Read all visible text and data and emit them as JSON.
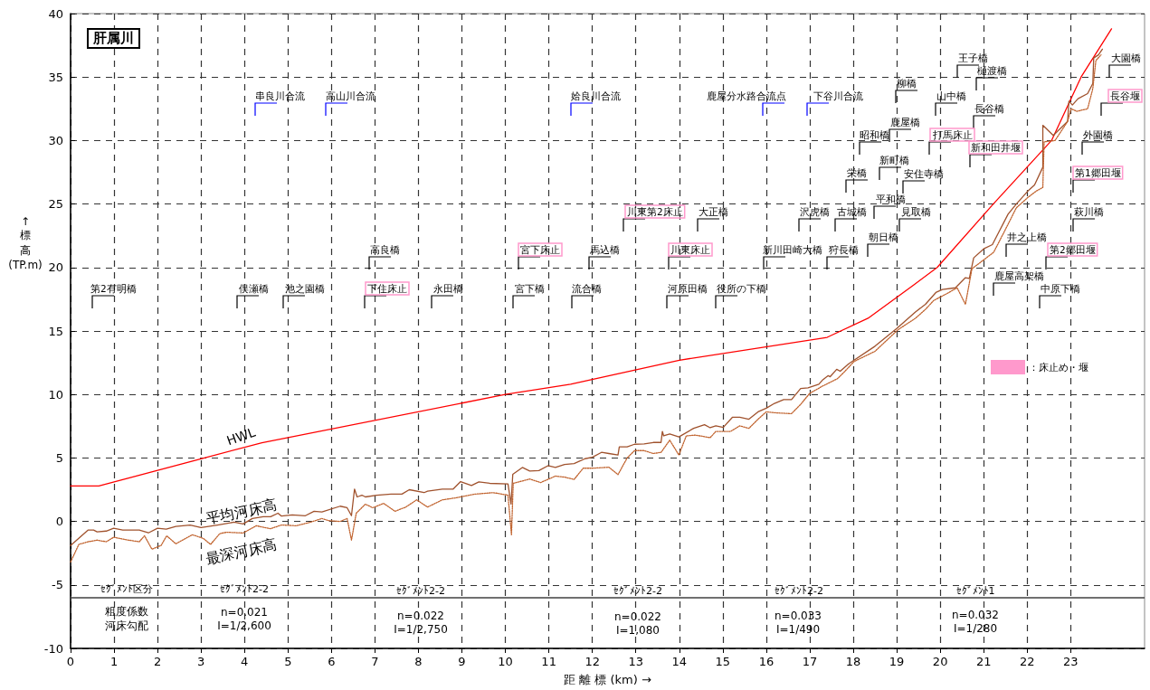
{
  "chart_data": {
    "type": "line",
    "title": "肝属川",
    "xlabel": "距 離 標 (km) →",
    "ylabel": "↑標高(TP.m)",
    "xlim": [
      0,
      24.7
    ],
    "xticks": [
      0,
      1,
      2,
      3,
      4,
      5,
      6,
      7,
      8,
      9,
      10,
      11,
      12,
      13,
      14,
      15,
      16,
      17,
      18,
      19,
      20,
      21,
      22,
      23
    ],
    "ylim": [
      -10,
      40
    ],
    "yticks": [
      -10,
      -5,
      0,
      5,
      10,
      15,
      20,
      25,
      30,
      35,
      40
    ],
    "grid": true,
    "legend": false,
    "marker": "none",
    "series": [
      {
        "name": "HWL",
        "color": "#ff0000",
        "line_style": "solid",
        "x": [
          0,
          0.65,
          4.4,
          10,
          11.5,
          14,
          17.4,
          18.34,
          19.38,
          19.93,
          21.22,
          22.56,
          23.24,
          23.94
        ],
        "values": [
          2.8,
          2.8,
          6.2,
          10,
          10.8,
          12.7,
          14.5,
          16,
          18.6,
          20,
          25,
          30,
          35,
          38.8
        ]
      },
      {
        "name": "平均河床高",
        "color": "#a0522d",
        "line_style": "solid",
        "x": [
          0,
          0.4,
          0.53,
          0.61,
          0.82,
          0.99,
          1.2,
          1.58,
          1.79,
          2.0,
          2.2,
          2.42,
          2.75,
          3.0,
          3.38,
          3.76,
          3.97,
          4.18,
          4.43,
          4.6,
          4.77,
          4.85,
          5.1,
          5.4,
          5.6,
          5.78,
          6.2,
          6.36,
          6.46,
          6.53,
          6.59,
          6.7,
          6.78,
          7.04,
          7.37,
          7.62,
          7.79,
          8.13,
          8.21,
          8.55,
          8.8,
          8.97,
          9.22,
          9.39,
          9.64,
          10.06,
          10.13,
          10.17,
          10.39,
          10.56,
          10.77,
          10.98,
          11.15,
          11.36,
          11.58,
          11.83,
          12,
          12.21,
          12.38,
          12.59,
          12.62,
          12.8,
          12.97,
          13.19,
          13.4,
          13.58,
          13.61,
          13.64,
          13.78,
          13.99,
          14.33,
          14.58,
          14.71,
          14.84,
          15.01,
          15.22,
          15.39,
          15.6,
          15.81,
          16,
          16.19,
          16.4,
          16.58,
          16.79,
          16.96,
          17.21,
          17.3,
          17.42,
          17.47,
          17.62,
          17.7,
          17.89,
          18.02,
          18.5,
          19.0,
          19.43,
          19.66,
          19.9,
          20.05,
          20.35,
          20.58,
          20.67,
          20.77,
          21.0,
          21.2,
          21.56,
          21.75,
          22.01,
          22.17,
          22.36,
          22.36,
          22.6,
          22.93,
          22.96,
          23.04,
          23.17,
          23.39,
          23.51,
          23.53,
          23.64,
          23.73
        ],
        "values": [
          -1.9,
          -0.68,
          -0.68,
          -0.82,
          -0.76,
          -0.54,
          -0.68,
          -0.68,
          -0.9,
          -0.54,
          -0.6,
          -0.4,
          -0.28,
          -0.48,
          -0.28,
          -0.06,
          -0.2,
          0.23,
          0.37,
          0.37,
          0.65,
          0.42,
          0.51,
          0.45,
          0.8,
          0.74,
          1.2,
          1.08,
          0.45,
          2.55,
          1.93,
          2.07,
          1.93,
          2.07,
          2.15,
          2.15,
          2.5,
          2.27,
          2.38,
          2.55,
          2.55,
          3.14,
          2.83,
          3.12,
          3.0,
          2.95,
          1.36,
          3.71,
          4.25,
          3.97,
          4.0,
          4.39,
          4.25,
          4.48,
          4.56,
          4.94,
          5.06,
          5.44,
          5.35,
          5.23,
          5.87,
          5.87,
          6.08,
          6.1,
          6.22,
          6.22,
          7.09,
          6.74,
          6.89,
          6.66,
          7.33,
          7.62,
          7.38,
          7.53,
          7.41,
          8.2,
          8.2,
          8.05,
          8.63,
          8.92,
          9.3,
          9.59,
          9.59,
          10.47,
          10.52,
          10.81,
          11.16,
          11.48,
          11.4,
          11.98,
          11.83,
          12.4,
          12.7,
          13.8,
          15.2,
          16.5,
          17.1,
          18.03,
          18.27,
          18.4,
          19.2,
          19.14,
          20.76,
          21.47,
          21.8,
          24.2,
          25.0,
          26.0,
          26.5,
          27.9,
          31.2,
          30.4,
          31.5,
          33.1,
          32.8,
          33.3,
          33.7,
          34.5,
          36.5,
          36.75,
          37.2
        ]
      },
      {
        "name": "最深河床高",
        "color": "#c0622d",
        "line_style": "dotted",
        "x": [
          0,
          0.19,
          0.4,
          0.61,
          0.82,
          0.99,
          1.24,
          1.58,
          1.7,
          1.87,
          2.08,
          2.21,
          2.42,
          2.8,
          3.05,
          3.22,
          3.43,
          3.59,
          3.97,
          4.27,
          4.6,
          4.85,
          5.19,
          5.52,
          5.78,
          5.94,
          6.2,
          6.36,
          6.46,
          6.57,
          6.78,
          6.95,
          7.2,
          7.46,
          7.71,
          7.96,
          8.21,
          8.55,
          8.88,
          9.3,
          9.72,
          10.06,
          10.14,
          10.18,
          10.56,
          10.81,
          11.15,
          11.36,
          11.58,
          11.79,
          12,
          12.38,
          12.59,
          12.8,
          12.97,
          13.19,
          13.4,
          13.58,
          13.78,
          13.99,
          14.16,
          14.37,
          14.71,
          14.84,
          15.18,
          15.39,
          15.6,
          15.81,
          16,
          16.23,
          16.58,
          16.79,
          17,
          17.3,
          17.64,
          17.81,
          18.02,
          18.5,
          19.03,
          19.43,
          19.66,
          19.85,
          20.13,
          20.39,
          20.58,
          20.73,
          21.0,
          21.23,
          21.56,
          21.75,
          22.01,
          22.2,
          22.36,
          22.39,
          22.64,
          22.93,
          23.01,
          23.14,
          23.39,
          23.51,
          23.58,
          23.7
        ],
        "values": [
          -3.2,
          -1.81,
          -1.6,
          -1.47,
          -1.6,
          -1.25,
          -1.42,
          -1.6,
          -1.13,
          -2.18,
          -1.9,
          -1.13,
          -1.76,
          -1.05,
          -1.33,
          -1.81,
          -0.96,
          -0.85,
          -0.91,
          -0.34,
          -0.57,
          -0.28,
          -0.34,
          -0.06,
          0.23,
          0.06,
          0,
          0.23,
          -1.47,
          0.65,
          1.36,
          1.08,
          1.42,
          0.8,
          1.13,
          1.7,
          1.13,
          1.7,
          1.87,
          2.15,
          2.27,
          2.07,
          -1.05,
          3.0,
          3.34,
          3.06,
          3.57,
          3.49,
          3.31,
          4.19,
          4.19,
          4.27,
          3.69,
          5.0,
          5.58,
          5.58,
          5.35,
          5.44,
          6.4,
          5.23,
          6.74,
          6.8,
          6.6,
          7.09,
          7.09,
          7.53,
          7.33,
          8.05,
          8.63,
          8.55,
          8.49,
          9.22,
          10.09,
          10.67,
          11.25,
          11.83,
          12.6,
          13.4,
          15.1,
          16.0,
          16.7,
          17.4,
          17.9,
          18.4,
          17.1,
          19.9,
          20.6,
          21.2,
          23.4,
          24.7,
          25.5,
          26.0,
          26.3,
          29.9,
          30.0,
          31.5,
          32.5,
          32.3,
          32.5,
          34.1,
          36.3,
          36.75
        ]
      }
    ],
    "ref_lines": [
      {
        "axis": "y",
        "value": -6,
        "color": "#404040",
        "line_style": "solid"
      }
    ],
    "annotations": [
      "第2有明橋",
      "串良川合流",
      "高山川合流",
      "俣瀬橋",
      "池之園橋",
      "高良橋",
      "下住床止",
      "永田橋",
      "姶良川合流",
      "鹿屋分水路合流点",
      "下谷川合流",
      "宮下床止",
      "宮下橋",
      "馬込橋",
      "流合橋",
      "川東第2床止",
      "大正橋",
      "川東床止",
      "河原田橋",
      "役所の下橋",
      "新川田崎大橋",
      "沢虎橋",
      "古城橋",
      "狩長橋",
      "栄橋",
      "昭和橋",
      "鹿屋橋",
      "柳橋",
      "新町橋",
      "安住寺橋",
      "平和橋",
      "見取橋",
      "朝日橋",
      "王子橋",
      "樋渡橋",
      "山中橋",
      "長谷橋",
      "打馬床止",
      "新和田井堰",
      "大園橋",
      "長谷堰",
      "外園橋",
      "第1郷田堰",
      "萩川橋",
      "井之上橋",
      "第2郷田堰",
      "鹿屋高架橋",
      "中原下橋",
      "ｾｸﾞﾒﾝﾄ区分",
      "粗度係数",
      "河床勾配",
      "ｾｸﾞﾒﾝﾄ2-2",
      "n=0.021",
      "I=1/2,600",
      "ｾｸﾞﾒﾝﾄ2-2",
      "n=0.022",
      "I=1/2,750",
      "ｾｸﾞﾒﾝﾄ2-2",
      "n=0.022",
      "I=1,080",
      "ｾｸﾞﾒﾝﾄ2-2",
      "n=0.033",
      "I=1/490",
      "ｾｸﾞﾒﾝﾄ1",
      "n=0.032",
      "I=1/280",
      "：床止め・堰"
    ]
  }
}
